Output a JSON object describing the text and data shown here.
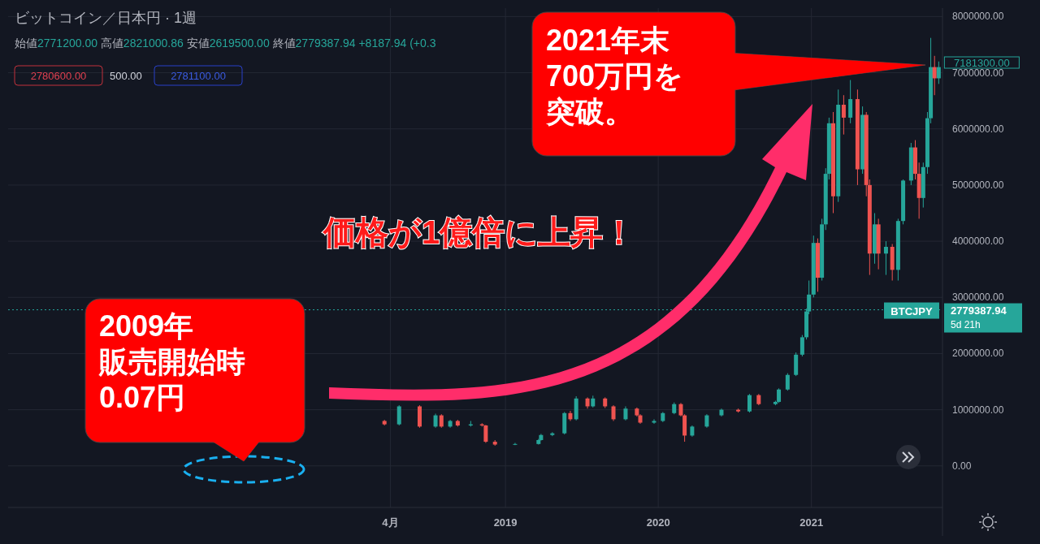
{
  "chart_data": {
    "type": "candlestick",
    "title": "ビットコイン／日本円 · 1週",
    "subtitle": "始値2771200.00 高値2821000.86 安値2619500.00 終値2779387.94 +8187.94 (+0.3",
    "x": [
      "2018-03-18",
      "2018-04-22",
      "2018-06-10",
      "2018-07-18",
      "2018-08-01",
      "2018-08-22",
      "2018-09-09",
      "2018-10-10",
      "2018-11-06",
      "2018-11-15",
      "2018-12-07",
      "2019-01-24",
      "2019-03-21",
      "2019-03-27",
      "2019-04-23",
      "2019-05-22",
      "2019-06-05",
      "2019-06-19",
      "2019-07-16",
      "2019-07-29",
      "2019-08-27",
      "2019-09-16",
      "2019-10-15",
      "2019-11-11",
      "2019-11-19",
      "2019-12-22",
      "2020-01-12",
      "2020-02-08",
      "2020-02-24",
      "2020-03-04",
      "2020-03-22",
      "2020-04-26",
      "2020-05-31",
      "2020-07-10",
      "2020-08-06",
      "2020-08-28",
      "2020-10-07",
      "2020-10-15",
      "2020-11-05",
      "2020-11-25",
      "2020-12-10",
      "2020-12-20",
      "2020-12-26",
      "2021-01-06",
      "2021-01-16",
      "2021-01-26",
      "2021-02-04",
      "2021-02-12",
      "2021-02-22",
      "2021-03-06",
      "2021-03-19",
      "2021-04-04",
      "2021-04-21",
      "2021-05-03",
      "2021-05-12",
      "2021-05-20",
      "2021-06-01",
      "2021-06-10",
      "2021-06-28",
      "2021-07-13",
      "2021-07-27",
      "2021-08-08",
      "2021-08-27",
      "2021-09-06",
      "2021-09-15",
      "2021-09-25",
      "2021-10-05",
      "2021-10-13",
      "2021-10-22",
      "2021-11-01"
    ],
    "ohlc": [
      [
        800000,
        820000,
        720000,
        740000
      ],
      [
        740000,
        1080000,
        720000,
        1060000
      ],
      [
        1060000,
        1080000,
        680000,
        700000
      ],
      [
        700000,
        930000,
        680000,
        900000
      ],
      [
        900000,
        920000,
        680000,
        700000
      ],
      [
        700000,
        820000,
        680000,
        800000
      ],
      [
        800000,
        820000,
        700000,
        720000
      ],
      [
        720000,
        800000,
        700000,
        740000
      ],
      [
        740000,
        760000,
        700000,
        720000
      ],
      [
        720000,
        730000,
        410000,
        430000
      ],
      [
        430000,
        460000,
        360000,
        380000
      ],
      [
        380000,
        410000,
        370000,
        390000
      ],
      [
        390000,
        480000,
        380000,
        460000
      ],
      [
        460000,
        570000,
        450000,
        550000
      ],
      [
        550000,
        600000,
        530000,
        580000
      ],
      [
        580000,
        960000,
        560000,
        940000
      ],
      [
        940000,
        980000,
        800000,
        830000
      ],
      [
        830000,
        1240000,
        810000,
        1200000
      ],
      [
        1200000,
        1220000,
        1020000,
        1060000
      ],
      [
        1060000,
        1250000,
        1040000,
        1200000
      ],
      [
        1200000,
        1220000,
        1030000,
        1060000
      ],
      [
        1060000,
        1080000,
        800000,
        830000
      ],
      [
        830000,
        1060000,
        810000,
        1020000
      ],
      [
        1020000,
        1040000,
        880000,
        900000
      ],
      [
        900000,
        920000,
        750000,
        770000
      ],
      [
        770000,
        830000,
        750000,
        800000
      ],
      [
        800000,
        960000,
        780000,
        940000
      ],
      [
        940000,
        1130000,
        920000,
        1100000
      ],
      [
        1100000,
        1120000,
        880000,
        900000
      ],
      [
        900000,
        920000,
        430000,
        540000
      ],
      [
        540000,
        720000,
        520000,
        700000
      ],
      [
        700000,
        920000,
        680000,
        900000
      ],
      [
        900000,
        1020000,
        880000,
        1000000
      ],
      [
        1000000,
        1020000,
        950000,
        970000
      ],
      [
        970000,
        1280000,
        950000,
        1260000
      ],
      [
        1260000,
        1280000,
        1080000,
        1100000
      ],
      [
        1100000,
        1160000,
        1080000,
        1140000
      ],
      [
        1140000,
        1380000,
        1120000,
        1360000
      ],
      [
        1360000,
        1650000,
        1340000,
        1620000
      ],
      [
        1620000,
        2020000,
        1600000,
        1980000
      ],
      [
        1980000,
        2330000,
        1950000,
        2290000
      ],
      [
        2290000,
        2800000,
        2250000,
        2750000
      ],
      [
        2750000,
        3300000,
        2700000,
        3050000
      ],
      [
        3050000,
        4100000,
        3000000,
        3970000
      ],
      [
        3970000,
        4050000,
        3100000,
        3350000
      ],
      [
        3350000,
        4400000,
        3300000,
        4300000
      ],
      [
        4300000,
        5300000,
        4200000,
        5200000
      ],
      [
        5200000,
        6200000,
        5100000,
        6100000
      ],
      [
        6100000,
        6300000,
        4500000,
        4800000
      ],
      [
        4800000,
        6700000,
        4700000,
        6430000
      ],
      [
        6430000,
        6600000,
        5900000,
        6200000
      ],
      [
        6200000,
        6870000,
        6100000,
        6530000
      ],
      [
        6530000,
        6700000,
        5000000,
        5280000
      ],
      [
        5280000,
        6400000,
        5200000,
        6250000
      ],
      [
        6250000,
        6300000,
        4800000,
        5000000
      ],
      [
        5000000,
        5100000,
        3400000,
        3780000
      ],
      [
        3780000,
        4500000,
        3600000,
        4300000
      ],
      [
        4300000,
        4400000,
        3500000,
        3780000
      ],
      [
        3780000,
        4000000,
        3400000,
        3900000
      ],
      [
        3900000,
        3950000,
        3300000,
        3490000
      ],
      [
        3490000,
        4400000,
        3300000,
        4360000
      ],
      [
        4360000,
        5100000,
        4300000,
        5080000
      ],
      [
        5080000,
        5750000,
        5000000,
        5670000
      ],
      [
        5670000,
        5800000,
        5100000,
        5200000
      ],
      [
        5200000,
        5400000,
        4400000,
        4770000
      ],
      [
        4770000,
        5400000,
        4600000,
        5320000
      ],
      [
        5320000,
        6300000,
        5200000,
        6190000
      ],
      [
        6190000,
        7620000,
        6100000,
        7100000
      ],
      [
        7100000,
        7300000,
        6600000,
        6900000
      ],
      [
        6900000,
        7200000,
        6800000,
        7100000
      ]
    ],
    "colors": [
      "#ef5350",
      "#26a69a",
      "#ef5350",
      "#26a69a",
      "#ef5350",
      "#26a69a",
      "#ef5350",
      "#26a69a",
      "#ef5350",
      "#ef5350",
      "#ef5350",
      "#26a69a",
      "#26a69a",
      "#26a69a",
      "#26a69a",
      "#26a69a",
      "#ef5350",
      "#26a69a",
      "#ef5350",
      "#26a69a",
      "#ef5350",
      "#ef5350",
      "#26a69a",
      "#ef5350",
      "#ef5350",
      "#26a69a",
      "#26a69a",
      "#26a69a",
      "#ef5350",
      "#ef5350",
      "#26a69a",
      "#26a69a",
      "#26a69a",
      "#ef5350",
      "#26a69a",
      "#ef5350",
      "#26a69a",
      "#26a69a",
      "#26a69a",
      "#26a69a",
      "#26a69a",
      "#26a69a",
      "#26a69a",
      "#26a69a",
      "#ef5350",
      "#26a69a",
      "#26a69a",
      "#26a69a",
      "#ef5350",
      "#26a69a",
      "#ef5350",
      "#26a69a",
      "#ef5350",
      "#26a69a",
      "#ef5350",
      "#ef5350",
      "#26a69a",
      "#ef5350",
      "#26a69a",
      "#ef5350",
      "#26a69a",
      "#26a69a",
      "#26a69a",
      "#ef5350",
      "#ef5350",
      "#26a69a",
      "#26a69a",
      "#26a69a",
      "#ef5350",
      "#26a69a"
    ],
    "xlim": [
      "2015-10-01",
      "2021-11-10"
    ],
    "xticks": [
      {
        "value": "2018-04-01",
        "label": "4月"
      },
      {
        "value": "2019-01-01",
        "label": "2019"
      },
      {
        "value": "2020-01-01",
        "label": "2020"
      },
      {
        "value": "2021-01-01",
        "label": "2021"
      }
    ],
    "ylim": [
      -740000,
      8150000
    ],
    "yticks": [
      {
        "value": 0,
        "label": "0.00"
      },
      {
        "value": 1000000,
        "label": "1000000.00"
      },
      {
        "value": 2000000,
        "label": "2000000.00"
      },
      {
        "value": 3000000,
        "label": "3000000.00"
      },
      {
        "value": 4000000,
        "label": "4000000.00"
      },
      {
        "value": 5000000,
        "label": "5000000.00"
      },
      {
        "value": 6000000,
        "label": "6000000.00"
      },
      {
        "value": 7000000,
        "label": "7000000.00"
      },
      {
        "value": 8000000,
        "label": "8000000.00"
      }
    ],
    "grid": true,
    "ref_lines": [
      {
        "axis": "y",
        "value": 2779387.94,
        "label": "2779387.94",
        "color": "#26a69a",
        "line_style": "dotted"
      }
    ],
    "annotations": [
      "2780600.00",
      "500.00",
      "2781100.00",
      "BTCJPY",
      "5d 21h",
      {
        "text": "7181300.00",
        "x": "2021-11-01",
        "y": 7181300
      },
      "2021年末",
      "700万円を",
      "突破。",
      "価格が1億倍に上昇！",
      "2009年",
      "販売開始時",
      "0.07円"
    ]
  }
}
